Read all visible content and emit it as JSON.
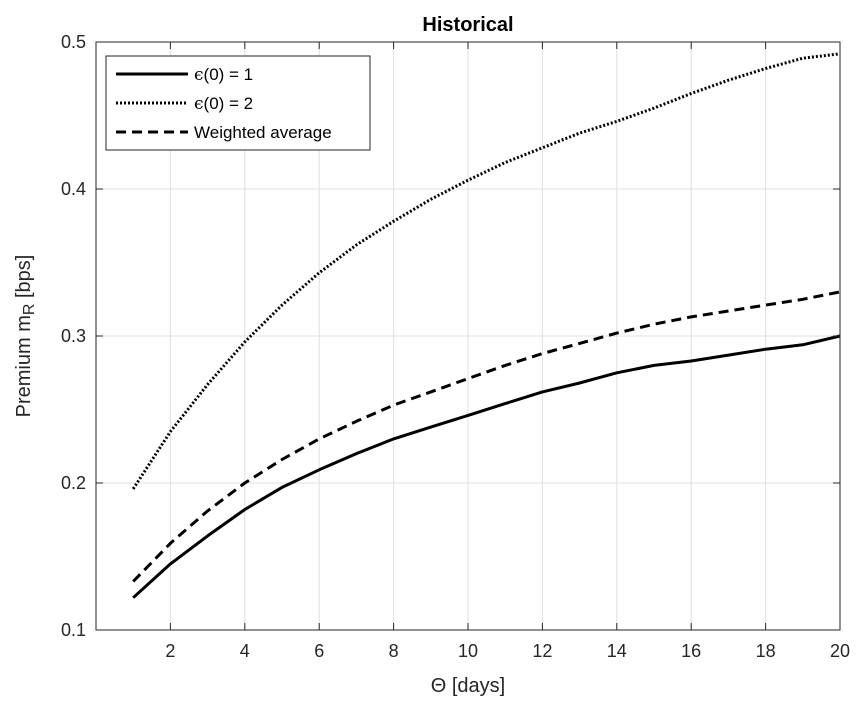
{
  "chart_data": {
    "type": "line",
    "title": "Historical",
    "xlabel": "Θ [days]",
    "ylabel_main": "Premium m",
    "ylabel_sub": "R",
    "ylabel_suffix": " [bps]",
    "xlim": [
      0,
      20
    ],
    "ylim": [
      0.1,
      0.5
    ],
    "xticks": [
      2,
      4,
      6,
      8,
      10,
      12,
      14,
      16,
      18,
      20
    ],
    "yticks": [
      0.1,
      0.2,
      0.3,
      0.4,
      0.5
    ],
    "ytick_labels": [
      "0.1",
      "0.2",
      "0.3",
      "0.4",
      "0.5"
    ],
    "grid": true,
    "legend_position": "top-left",
    "x": [
      1,
      2,
      3,
      4,
      5,
      6,
      7,
      8,
      9,
      10,
      11,
      12,
      13,
      14,
      15,
      16,
      17,
      18,
      19,
      20
    ],
    "series": [
      {
        "legend_prefix": "ϵ",
        "legend_suffix": "(0) = 1",
        "style": "solid",
        "color": "#000000",
        "values": [
          0.122,
          0.145,
          0.164,
          0.182,
          0.197,
          0.209,
          0.22,
          0.23,
          0.238,
          0.246,
          0.254,
          0.262,
          0.268,
          0.275,
          0.28,
          0.283,
          0.287,
          0.291,
          0.294,
          0.3
        ]
      },
      {
        "legend_prefix": "ϵ",
        "legend_suffix": "(0) = 2",
        "style": "dotted",
        "color": "#000000",
        "values": [
          0.196,
          0.235,
          0.267,
          0.296,
          0.321,
          0.343,
          0.362,
          0.378,
          0.393,
          0.406,
          0.418,
          0.428,
          0.438,
          0.446,
          0.455,
          0.465,
          0.474,
          0.482,
          0.489,
          0.492
        ]
      },
      {
        "legend_label": "Weighted average",
        "style": "dashed",
        "color": "#000000",
        "values": [
          0.133,
          0.159,
          0.181,
          0.2,
          0.216,
          0.23,
          0.242,
          0.253,
          0.262,
          0.271,
          0.28,
          0.288,
          0.295,
          0.302,
          0.308,
          0.313,
          0.317,
          0.321,
          0.325,
          0.33
        ]
      }
    ]
  },
  "colors": {
    "background": "#ffffff",
    "axes_box": "#262626",
    "grid": "#dfdfdf"
  }
}
